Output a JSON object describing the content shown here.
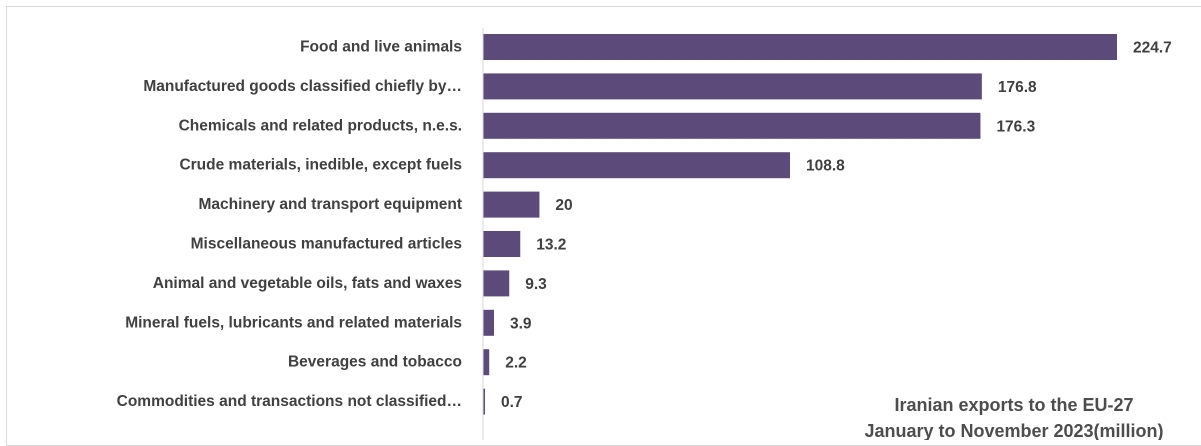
{
  "chart_data": {
    "type": "bar",
    "orientation": "horizontal",
    "title": "Iranian exports to the EU-27",
    "subtitle": "January to November 2023(million)",
    "xlabel": "",
    "ylabel": "",
    "xlim": [
      0,
      224.7
    ],
    "grid": false,
    "legend": "none",
    "bar_color": "#5c4a7a",
    "categories": [
      "Food and live animals",
      "Manufactured goods classified chiefly by…",
      "Chemicals and related products, n.e.s.",
      "Crude materials, inedible, except fuels",
      "Machinery and transport equipment",
      "Miscellaneous manufactured articles",
      "Animal and vegetable oils, fats and waxes",
      "Mineral fuels, lubricants and related materials",
      "Beverages and tobacco",
      "Commodities and transactions not classified…"
    ],
    "values": [
      224.7,
      176.8,
      176.3,
      108.8,
      20,
      13.2,
      9.3,
      3.9,
      2.2,
      0.7
    ],
    "value_labels": [
      "224.7",
      "176.8",
      "176.3",
      "108.8",
      "20",
      "13.2",
      "9.3",
      "3.9",
      "2.2",
      "0.7"
    ]
  }
}
